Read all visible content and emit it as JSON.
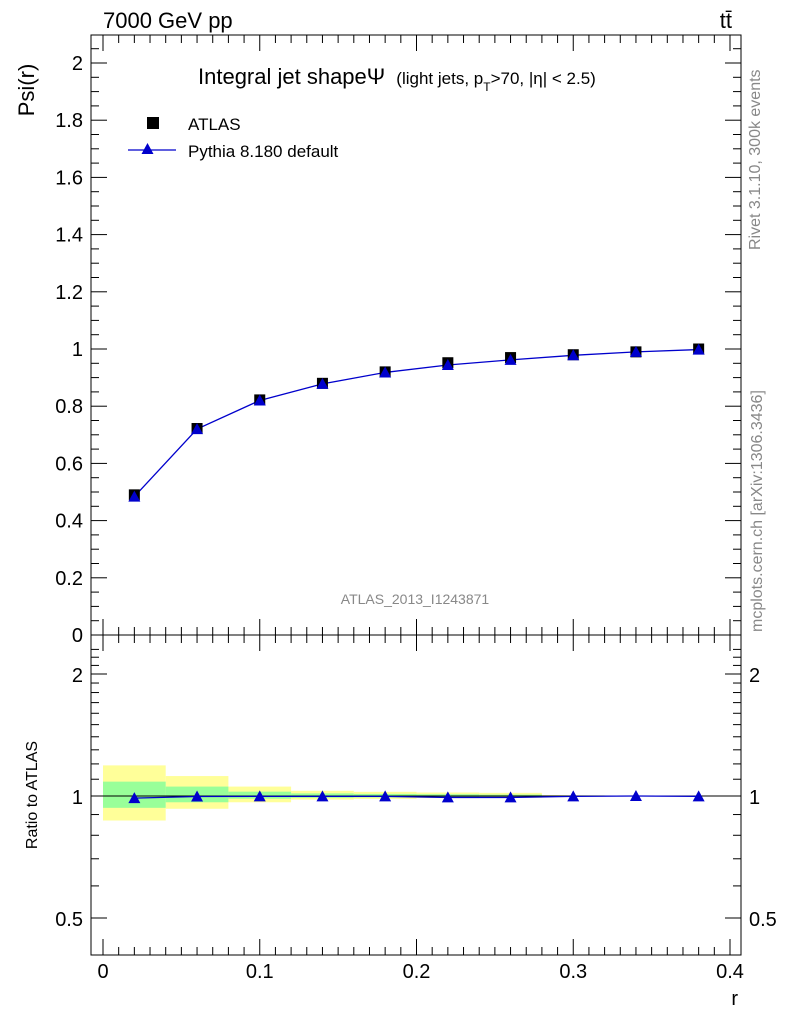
{
  "header": {
    "energy_label": "7000 GeV pp",
    "process_label": "tt̄"
  },
  "side_text": {
    "rivet": "Rivet 3.1.10,  300k events",
    "mcplots": "mcplots.cern.ch [arXiv:1306.3436]"
  },
  "watermark": "ATLAS_2013_I1243871",
  "colors": {
    "mc": "#0000cc",
    "data": "#000000",
    "band_inner": "#99ff99",
    "band_outer": "#ffff99"
  },
  "chart_data": [
    {
      "type": "scatter",
      "title_main": "Integral jet shapeΨ",
      "title_sub_pre": "(light jets, p",
      "title_sub_subscript": "T",
      "title_sub_post": ">70, |η| < 2.5)",
      "ylabel": "Psi(r)",
      "xlim": [
        0,
        0.4
      ],
      "ylim": [
        0,
        2.1
      ],
      "yticks": [
        "0",
        "0.2",
        "0.4",
        "0.6",
        "0.8",
        "1",
        "1.2",
        "1.4",
        "1.6",
        "1.8",
        "2"
      ],
      "legend": {
        "placement": "top-left"
      },
      "series": [
        {
          "name": "ATLAS",
          "marker": "square",
          "x": [
            0.02,
            0.06,
            0.1,
            0.14,
            0.18,
            0.22,
            0.26,
            0.3,
            0.34,
            0.38
          ],
          "values": [
            0.49,
            0.722,
            0.822,
            0.88,
            0.92,
            0.952,
            0.97,
            0.98,
            0.99,
            1.0
          ]
        },
        {
          "name": "Pythia 8.180 default",
          "marker": "triangle",
          "x": [
            0.02,
            0.06,
            0.1,
            0.14,
            0.18,
            0.22,
            0.26,
            0.3,
            0.34,
            0.38
          ],
          "values": [
            0.484,
            0.72,
            0.82,
            0.878,
            0.918,
            0.944,
            0.962,
            0.978,
            0.99,
            0.998
          ]
        }
      ]
    },
    {
      "type": "line",
      "ylabel": "Ratio to ATLAS",
      "xlabel": "r",
      "xlim": [
        0,
        0.4
      ],
      "ylim": [
        0.36,
        2.35
      ],
      "yscale": "log",
      "xticks": [
        "0",
        "0.1",
        "0.2",
        "0.3",
        "0.4"
      ],
      "yticks": [
        "0.5",
        "1",
        "2"
      ],
      "bands": {
        "bin_edges": [
          0.0,
          0.04,
          0.08,
          0.12,
          0.16,
          0.2,
          0.24,
          0.28,
          0.32,
          0.36,
          0.4
        ],
        "inner_low": [
          0.935,
          0.965,
          0.985,
          0.99,
          0.992,
          0.994,
          0.996,
          0.998,
          0.999,
          0.999
        ],
        "inner_high": [
          1.085,
          1.055,
          1.025,
          1.015,
          1.012,
          1.01,
          1.008,
          1.003,
          1.002,
          1.001
        ],
        "outer_low": [
          0.87,
          0.93,
          0.965,
          0.98,
          0.984,
          0.988,
          0.99,
          0.997,
          0.998,
          0.999
        ],
        "outer_high": [
          1.19,
          1.12,
          1.055,
          1.03,
          1.024,
          1.02,
          1.018,
          1.004,
          1.002,
          1.001
        ]
      },
      "series": [
        {
          "name": "Pythia 8.180 default",
          "x": [
            0.02,
            0.06,
            0.1,
            0.14,
            0.18,
            0.22,
            0.26,
            0.3,
            0.34,
            0.38
          ],
          "values": [
            0.988,
            0.997,
            0.998,
            0.998,
            0.998,
            0.992,
            0.992,
            0.998,
            1.0,
            0.998
          ]
        }
      ]
    }
  ]
}
